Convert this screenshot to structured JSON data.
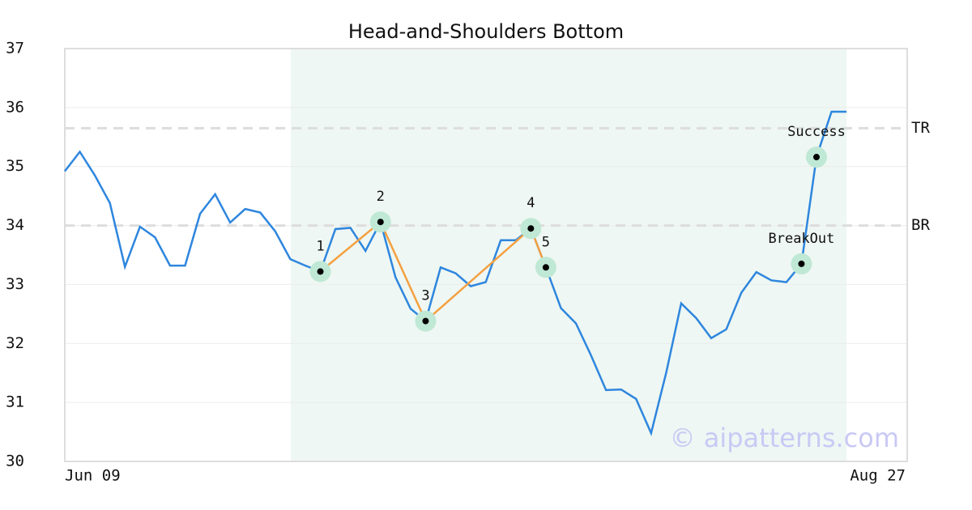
{
  "chart_data": {
    "type": "line",
    "title": "Head-and-Shoulders Bottom",
    "categories": [
      "Jun 09",
      null,
      null,
      null,
      null,
      null,
      null,
      null,
      null,
      null,
      null,
      null,
      null,
      null,
      null,
      null,
      null,
      null,
      null,
      null,
      null,
      null,
      null,
      null,
      null,
      null,
      null,
      null,
      null,
      null,
      null,
      null,
      null,
      null,
      null,
      null,
      null,
      null,
      null,
      null,
      null,
      null,
      null,
      null,
      null,
      null,
      null,
      null,
      null,
      null,
      null,
      null,
      "Aug 27"
    ],
    "series": [
      {
        "color": "#2e86de",
        "values": [
          34.92,
          35.25,
          34.85,
          34.38,
          33.3,
          33.98,
          33.8,
          33.32,
          33.32,
          34.2,
          34.53,
          34.05,
          34.28,
          34.22,
          33.9,
          33.43,
          33.32,
          33.22,
          33.94,
          33.96,
          33.57,
          34.06,
          33.12,
          32.59,
          32.38,
          33.29,
          33.19,
          32.97,
          33.04,
          33.75,
          33.75,
          33.95,
          33.29,
          32.6,
          32.34,
          31.8,
          31.21,
          31.22,
          31.06,
          30.48,
          31.5,
          32.68,
          32.43,
          32.09,
          32.24,
          32.86,
          33.21,
          33.07,
          33.04,
          33.35,
          35.16,
          35.93,
          35.93
        ]
      }
    ],
    "pattern_color": "#f4a040",
    "pattern_points": [
      {
        "label": "1",
        "x": 17,
        "value": 33.22
      },
      {
        "label": "2",
        "x": 21,
        "value": 34.06
      },
      {
        "label": "3",
        "x": 24,
        "value": 32.38
      },
      {
        "label": "4",
        "x": 31,
        "value": 33.95
      },
      {
        "label": "5",
        "x": 32,
        "value": 33.29
      }
    ],
    "signal_points": [
      {
        "label": "BreakOut",
        "x": 49,
        "value": 33.35
      },
      {
        "label": "Success",
        "x": 50,
        "value": 35.16
      }
    ],
    "reference_lines": [
      {
        "label": "TR",
        "value": 35.65
      },
      {
        "label": "BR",
        "value": 34
      }
    ],
    "ylim": [
      30,
      37
    ],
    "yticks": [
      30,
      31,
      32,
      33,
      34,
      35,
      36,
      37
    ],
    "grid": true,
    "watermark": "© aipatterns.com"
  }
}
